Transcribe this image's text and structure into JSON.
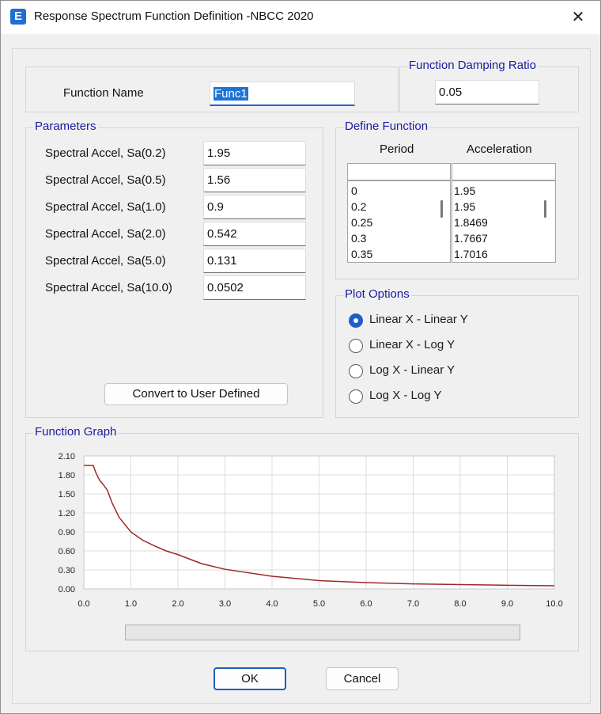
{
  "window": {
    "title": "Response Spectrum Function Definition -NBCC 2020",
    "app_icon_letter": "E",
    "close_glyph": "✕"
  },
  "function_name": {
    "label": "Function Name",
    "value": "Func1"
  },
  "damping": {
    "title": "Function Damping Ratio",
    "value": "0.05"
  },
  "parameters": {
    "title": "Parameters",
    "rows": [
      {
        "label": "Spectral Accel, Sa(0.2)",
        "value": "1.95"
      },
      {
        "label": "Spectral Accel, Sa(0.5)",
        "value": "1.56"
      },
      {
        "label": "Spectral Accel, Sa(1.0)",
        "value": "0.9"
      },
      {
        "label": "Spectral Accel, Sa(2.0)",
        "value": "0.542"
      },
      {
        "label": "Spectral Accel, Sa(5.0)",
        "value": "0.131"
      },
      {
        "label": "Spectral Accel, Sa(10.0)",
        "value": "0.0502"
      }
    ],
    "convert_button": "Convert to User Defined"
  },
  "define_function": {
    "title": "Define Function",
    "col_period": "Period",
    "col_accel": "Acceleration",
    "periods": [
      "0",
      "0.2",
      "0.25",
      "0.3",
      "0.35"
    ],
    "accels": [
      "1.95",
      "1.95",
      "1.8469",
      "1.7667",
      "1.7016"
    ]
  },
  "plot_options": {
    "title": "Plot Options",
    "options": [
      {
        "label": "Linear X - Linear Y",
        "checked": true
      },
      {
        "label": "Linear X - Log Y",
        "checked": false
      },
      {
        "label": "Log X - Linear Y",
        "checked": false
      },
      {
        "label": "Log X - Log Y",
        "checked": false
      }
    ]
  },
  "graph": {
    "title": "Function Graph"
  },
  "buttons": {
    "ok": "OK",
    "cancel": "Cancel"
  },
  "chart_data": {
    "type": "line",
    "color": "#a02828",
    "xlim": [
      0,
      10
    ],
    "ylim": [
      0,
      2.1
    ],
    "x_ticks": [
      "0.0",
      "1.0",
      "2.0",
      "3.0",
      "4.0",
      "5.0",
      "6.0",
      "7.0",
      "8.0",
      "9.0",
      "10.0"
    ],
    "y_ticks": [
      "0.00",
      "0.30",
      "0.60",
      "0.90",
      "1.20",
      "1.50",
      "1.80",
      "2.10"
    ],
    "x": [
      0,
      0.2,
      0.25,
      0.3,
      0.35,
      0.4,
      0.5,
      0.6,
      0.75,
      1.0,
      1.25,
      1.5,
      1.75,
      2.0,
      2.5,
      3.0,
      4.0,
      5.0,
      6.0,
      7.0,
      8.0,
      9.0,
      10.0
    ],
    "y": [
      1.95,
      1.95,
      1.8469,
      1.7667,
      1.7016,
      1.66,
      1.56,
      1.36,
      1.13,
      0.9,
      0.77,
      0.68,
      0.6,
      0.542,
      0.4,
      0.31,
      0.2,
      0.131,
      0.1,
      0.08,
      0.068,
      0.058,
      0.0502
    ]
  }
}
